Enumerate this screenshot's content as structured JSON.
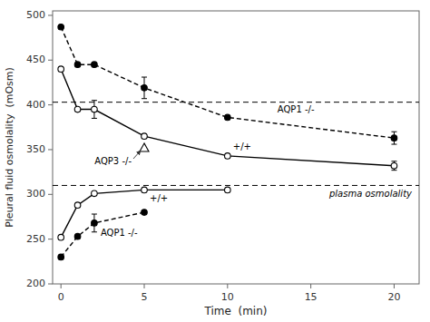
{
  "chart_data": {
    "type": "line",
    "x_label": "Time  (min)",
    "y_label": "Pleural fluid osmolality  (mOsm)",
    "xlim": [
      -0.5,
      21.5
    ],
    "ylim": [
      200,
      505
    ],
    "xticks": [
      0,
      5,
      10,
      15,
      20
    ],
    "yticks": [
      200,
      250,
      300,
      350,
      400,
      450,
      500
    ],
    "grid": false,
    "reference_lines": [
      {
        "value": 310,
        "label": "plasma osmolality"
      },
      {
        "value": 403
      }
    ],
    "series": [
      {
        "name": "+/+",
        "color": "#000000",
        "marker": "circle-open",
        "line_style": "solid",
        "x": [
          0,
          1,
          2,
          5,
          10,
          20
        ],
        "values": [
          440,
          395,
          395,
          365,
          343,
          332
        ],
        "errors": [
          0,
          0,
          10,
          0,
          0,
          5
        ]
      },
      {
        "name": "AQP1 -/-",
        "color": "#000000",
        "marker": "circle",
        "line_style": "dashed",
        "x": [
          0,
          1,
          2,
          5,
          10,
          20
        ],
        "values": [
          487,
          445,
          445,
          419,
          386,
          363
        ],
        "errors": [
          0,
          0,
          0,
          12,
          0,
          7
        ]
      },
      {
        "name": "AQP3 -/-",
        "color": "#000000",
        "marker": "triangle-open",
        "line_style": "none",
        "x": [
          5
        ],
        "values": [
          352
        ]
      },
      {
        "name": "+/+",
        "color": "#000000",
        "marker": "circle-open",
        "line_style": "solid",
        "x": [
          0,
          1,
          2,
          5,
          10
        ],
        "values": [
          252,
          288,
          301,
          305,
          305
        ],
        "errors": [
          0,
          0,
          0,
          0,
          0
        ]
      },
      {
        "name": "AQP1 -/-",
        "color": "#000000",
        "marker": "circle",
        "line_style": "dashed",
        "x": [
          0,
          1,
          2,
          5
        ],
        "values": [
          230,
          253,
          268,
          280
        ],
        "errors": [
          0,
          0,
          10,
          0
        ]
      }
    ]
  }
}
